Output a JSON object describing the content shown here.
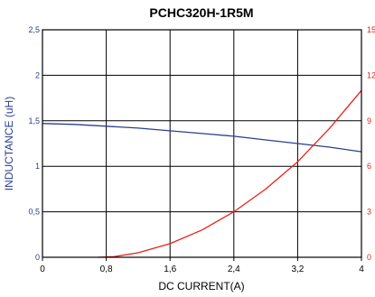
{
  "chart_data": {
    "type": "line",
    "title": "PCHC320H-1R5M",
    "xlabel": "DC CURRENT(A)",
    "ylabel": "INDUCTANCE (uH)",
    "y2label": "",
    "xlim": [
      0,
      4
    ],
    "ylim": [
      0,
      2.5
    ],
    "y2lim": [
      0,
      15
    ],
    "grid": true,
    "x_ticks": [
      "0",
      "0,8",
      "1,6",
      "2,4",
      "3,2",
      "4"
    ],
    "x_tick_values": [
      0,
      0.8,
      1.6,
      2.4,
      3.2,
      4.0
    ],
    "y_ticks": [
      "0",
      "0,5",
      "1",
      "1,5",
      "2",
      "2,5"
    ],
    "y_tick_values": [
      0,
      0.5,
      1.0,
      1.5,
      2.0,
      2.5
    ],
    "y2_ticks": [
      "0",
      "3",
      "6",
      "9",
      "12",
      "15"
    ],
    "y2_tick_values": [
      0,
      3,
      6,
      9,
      12,
      15
    ],
    "series": [
      {
        "axis": "left",
        "color": "#2b3f8f",
        "x": [
          0,
          0.4,
          0.8,
          1.2,
          1.6,
          2.0,
          2.4,
          2.8,
          3.2,
          3.6,
          4.0
        ],
        "values": [
          1.47,
          1.46,
          1.44,
          1.42,
          1.39,
          1.36,
          1.33,
          1.29,
          1.25,
          1.21,
          1.16
        ]
      },
      {
        "axis": "right",
        "color": "#e8201a",
        "x": [
          0.7,
          0.9,
          1.2,
          1.6,
          2.0,
          2.4,
          2.8,
          3.2,
          3.6,
          4.0
        ],
        "values": [
          0,
          0.04,
          0.3,
          0.9,
          1.8,
          3.0,
          4.5,
          6.3,
          8.5,
          11.0
        ]
      }
    ],
    "colors": {
      "left_axis": "#2b3f8f",
      "right_axis": "#e8201a",
      "grid": "#000000",
      "text": "#000000"
    }
  }
}
